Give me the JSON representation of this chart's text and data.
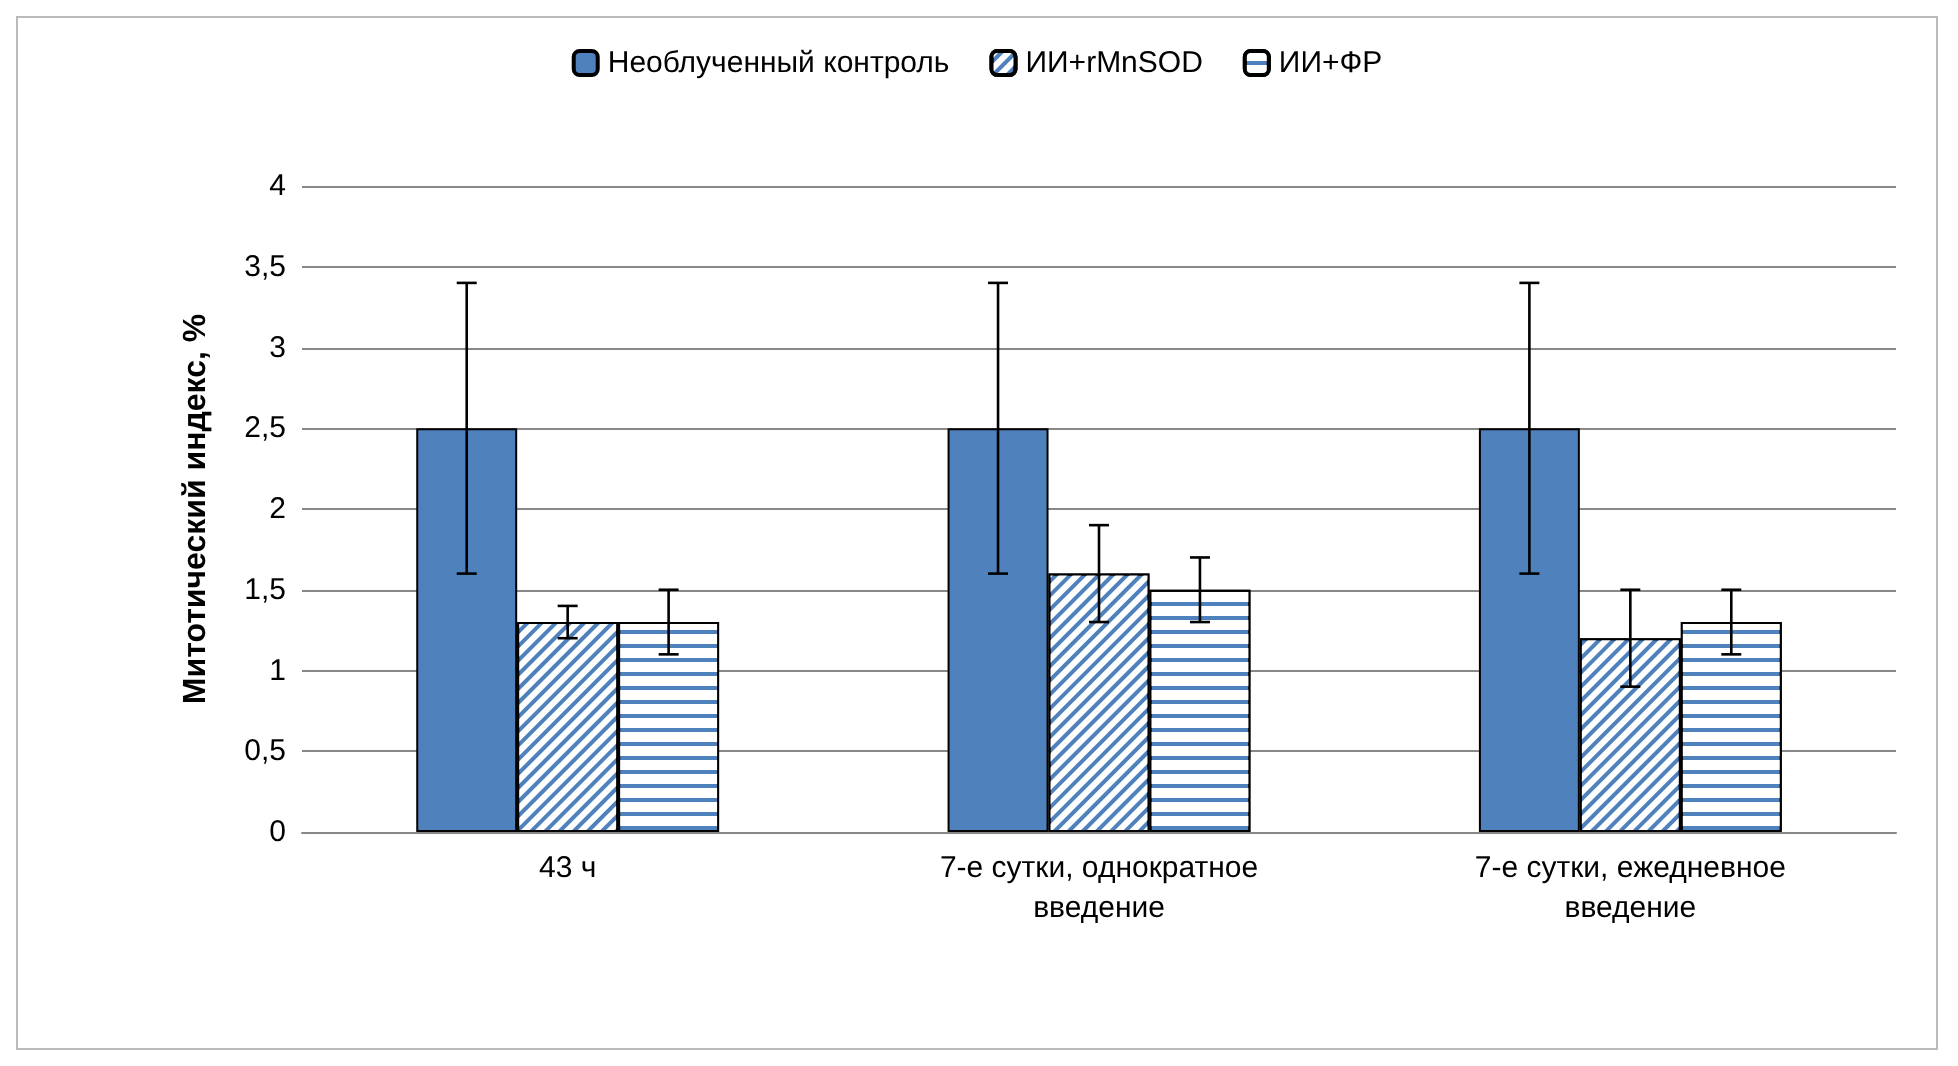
{
  "chart_data": {
    "type": "bar",
    "ylabel": "Митотический индекс, %",
    "categories": [
      "43 ч",
      "7-е сутки, однократное введение",
      "7-е сутки, ежедневное введение"
    ],
    "series": [
      {
        "name": "Необлученный контроль",
        "color": "#4f81bd",
        "values": [
          2.5,
          2.5,
          2.5
        ],
        "errors": [
          0.9,
          0.9,
          0.9
        ]
      },
      {
        "name": "ИИ+rMnSOD",
        "color": "#4f81bd",
        "values": [
          1.3,
          1.6,
          1.2
        ],
        "errors": [
          0.1,
          0.3,
          0.3
        ]
      },
      {
        "name": "ИИ+ФР",
        "color": "#4f81bd",
        "values": [
          1.3,
          1.5,
          1.3
        ],
        "errors": [
          0.2,
          0.2,
          0.2
        ]
      }
    ],
    "ylim": [
      0,
      4
    ],
    "yticks": [
      0,
      {
        "value": 0.5,
        "label": "0,5"
      },
      1,
      {
        "value": 1.5,
        "label": "1,5"
      },
      2,
      {
        "value": 2.5,
        "label": "2,5"
      },
      3,
      {
        "value": 3.5,
        "label": "3,5"
      },
      4
    ],
    "grid": "y",
    "legend": "top"
  }
}
